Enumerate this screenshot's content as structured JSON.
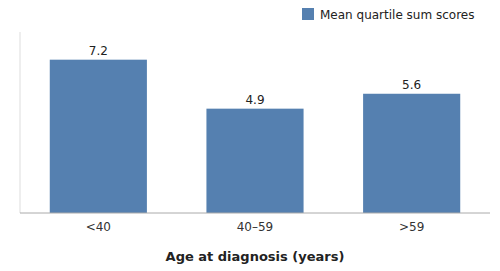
{
  "chart_data": {
    "type": "bar",
    "x_label": "Age at diagnosis (years)",
    "categories": [
      "<40",
      "40–59",
      ">59"
    ],
    "series": [
      {
        "name": "Mean quartile sum scores",
        "color": "#5580b0",
        "values": [
          7.2,
          4.9,
          5.6
        ]
      }
    ],
    "ylim": [
      0,
      8.5
    ],
    "grid": false,
    "legend": "top-right",
    "data_labels": true,
    "tick_labels": "x"
  }
}
